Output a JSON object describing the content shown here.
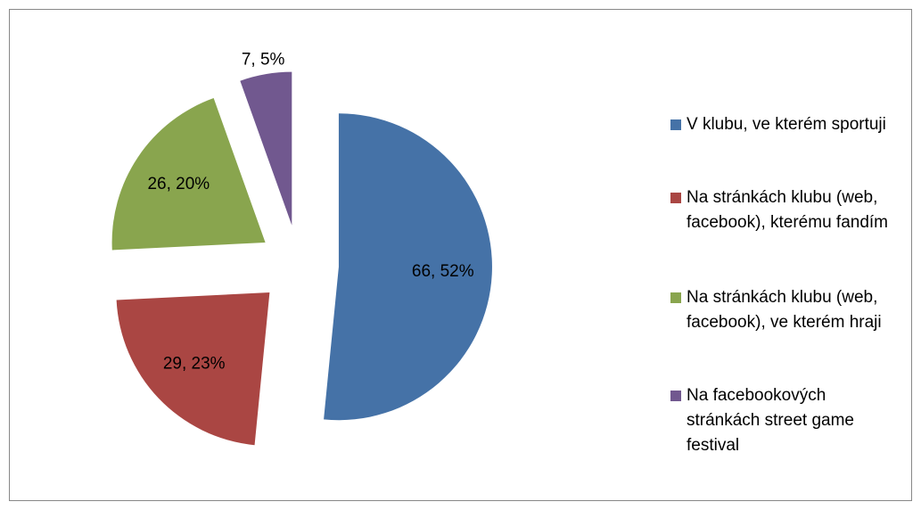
{
  "chart_data": {
    "type": "pie",
    "categories": [
      "V klubu, ve kterém sportuji",
      "Na stránkách klubu (web, facebook), kterému fandím",
      "Na stránkách klubu (web, facebook), ve kterém hraji",
      "Na facebookových stránkách street game festival"
    ],
    "values": [
      66,
      29,
      26,
      7
    ],
    "value_labels": [
      "66, 52%",
      "29, 23%",
      "26, 20%",
      "7, 5%"
    ],
    "colors": [
      "#4572a7",
      "#aa4643",
      "#89a54e",
      "#71588f"
    ],
    "legend": "right"
  }
}
